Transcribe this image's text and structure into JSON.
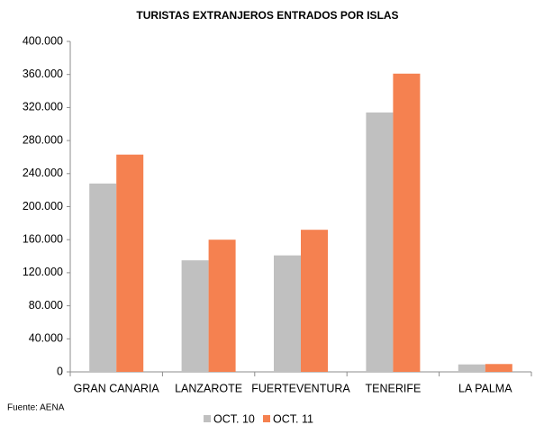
{
  "chart_data": {
    "type": "bar",
    "title": "TURISTAS EXTRANJEROS ENTRADOS POR ISLAS",
    "categories": [
      "GRAN CANARIA",
      "LANZAROTE",
      "FUERTEVENTURA",
      "TENERIFE",
      "LA PALMA"
    ],
    "series": [
      {
        "name": "OCT. 10",
        "color": "#c0c0c0",
        "values": [
          228000,
          135000,
          141000,
          314000,
          9000
        ]
      },
      {
        "name": "OCT. 11",
        "color": "#f58150",
        "values": [
          263000,
          160000,
          172000,
          361000,
          9500
        ]
      }
    ],
    "ylim": [
      0,
      400000
    ],
    "yticks": [
      0,
      {
        "value": 40000,
        "label": "40.000"
      },
      {
        "value": 80000,
        "label": "80.000"
      },
      {
        "value": 120000,
        "label": "120.000"
      },
      {
        "value": 160000,
        "label": "160.000"
      },
      {
        "value": 200000,
        "label": "200.000"
      },
      {
        "value": 240000,
        "label": "240.000"
      },
      {
        "value": 280000,
        "label": "280.000"
      },
      {
        "value": 320000,
        "label": "320.000"
      },
      {
        "value": 360000,
        "label": "360.000"
      },
      {
        "value": 400000,
        "label": "400.000"
      }
    ],
    "source": "Fuente: AENA",
    "legend": "bottom"
  }
}
